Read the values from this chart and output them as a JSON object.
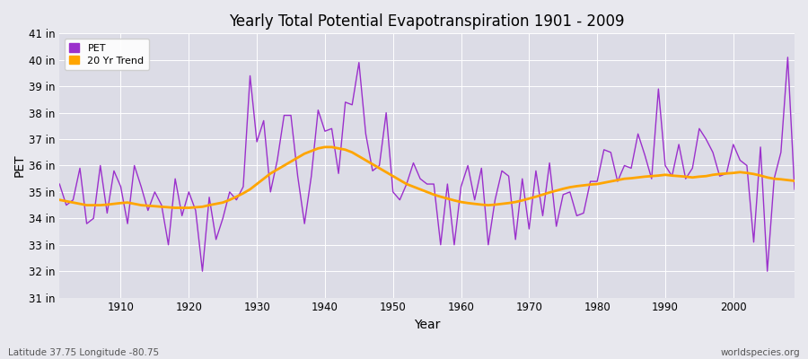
{
  "title": "Yearly Total Potential Evapotranspiration 1901 - 2009",
  "ylabel": "PET",
  "xlabel": "Year",
  "bottom_left_label": "Latitude 37.75 Longitude -80.75",
  "bottom_right_label": "worldspecies.org",
  "ylim": [
    31,
    41
  ],
  "xlim": [
    1901,
    2009
  ],
  "yticks": [
    31,
    32,
    33,
    34,
    35,
    36,
    37,
    38,
    39,
    40,
    41
  ],
  "xticks": [
    1910,
    1920,
    1930,
    1940,
    1950,
    1960,
    1970,
    1980,
    1990,
    2000
  ],
  "pet_color": "#9B30CC",
  "trend_color": "#FFA500",
  "bg_color": "#E8E8EE",
  "plot_bg_color": "#DCDCE6",
  "grid_color": "#FFFFFF",
  "legend_labels": [
    "PET",
    "20 Yr Trend"
  ],
  "pet_data": [
    35.3,
    34.5,
    34.7,
    35.9,
    33.8,
    34.0,
    36.0,
    34.2,
    35.8,
    35.2,
    33.8,
    36.0,
    35.2,
    34.3,
    35.0,
    34.5,
    33.0,
    35.5,
    34.1,
    35.0,
    34.3,
    32.0,
    34.8,
    33.2,
    34.0,
    35.0,
    34.7,
    35.2,
    39.4,
    36.9,
    37.7,
    35.0,
    36.2,
    37.9,
    37.9,
    35.6,
    33.8,
    35.6,
    38.1,
    37.3,
    37.4,
    35.7,
    38.4,
    38.3,
    39.9,
    37.2,
    35.8,
    36.0,
    38.0,
    35.0,
    34.7,
    35.3,
    36.1,
    35.5,
    35.3,
    35.3,
    33.0,
    35.3,
    33.0,
    35.2,
    36.0,
    34.7,
    35.9,
    33.0,
    34.7,
    35.8,
    35.6,
    33.2,
    35.5,
    33.6,
    35.8,
    34.1,
    36.1,
    33.7,
    34.9,
    35.0,
    34.1,
    34.2,
    35.4,
    35.4,
    36.6,
    36.5,
    35.4,
    36.0,
    35.9,
    37.2,
    36.4,
    35.5,
    38.9,
    36.0,
    35.6,
    36.8,
    35.5,
    35.9,
    37.4,
    37.0,
    36.5,
    35.6,
    35.7,
    36.8,
    36.2,
    36.0,
    33.1,
    36.7,
    32.0,
    35.5,
    36.5,
    40.1,
    35.1
  ],
  "years": [
    1901,
    1902,
    1903,
    1904,
    1905,
    1906,
    1907,
    1908,
    1909,
    1910,
    1911,
    1912,
    1913,
    1914,
    1915,
    1916,
    1917,
    1918,
    1919,
    1920,
    1921,
    1922,
    1923,
    1924,
    1925,
    1926,
    1927,
    1928,
    1929,
    1930,
    1931,
    1932,
    1933,
    1934,
    1935,
    1936,
    1937,
    1938,
    1939,
    1940,
    1941,
    1942,
    1943,
    1944,
    1945,
    1946,
    1947,
    1948,
    1949,
    1950,
    1951,
    1952,
    1953,
    1954,
    1955,
    1956,
    1957,
    1958,
    1959,
    1960,
    1961,
    1962,
    1963,
    1964,
    1965,
    1966,
    1967,
    1968,
    1969,
    1970,
    1971,
    1972,
    1973,
    1974,
    1975,
    1976,
    1977,
    1978,
    1979,
    1980,
    1981,
    1982,
    1983,
    1984,
    1985,
    1986,
    1987,
    1988,
    1989,
    1990,
    1991,
    1992,
    1993,
    1994,
    1995,
    1996,
    1997,
    1998,
    1999,
    2000,
    2001,
    2002,
    2003,
    2004,
    2005,
    2006,
    2007,
    2008,
    2009
  ],
  "trend_data": [
    34.7,
    34.65,
    34.6,
    34.55,
    34.5,
    34.5,
    34.5,
    34.52,
    34.55,
    34.58,
    34.6,
    34.55,
    34.5,
    34.48,
    34.46,
    34.44,
    34.42,
    34.4,
    34.4,
    34.4,
    34.42,
    34.44,
    34.5,
    34.55,
    34.6,
    34.7,
    34.82,
    34.95,
    35.1,
    35.3,
    35.5,
    35.7,
    35.85,
    36.0,
    36.15,
    36.3,
    36.45,
    36.55,
    36.65,
    36.7,
    36.7,
    36.65,
    36.6,
    36.5,
    36.35,
    36.2,
    36.05,
    35.9,
    35.75,
    35.6,
    35.45,
    35.3,
    35.2,
    35.1,
    35.0,
    34.9,
    34.82,
    34.75,
    34.68,
    34.62,
    34.58,
    34.55,
    34.52,
    34.5,
    34.52,
    34.55,
    34.58,
    34.62,
    34.68,
    34.75,
    34.82,
    34.9,
    34.98,
    35.05,
    35.12,
    35.18,
    35.22,
    35.25,
    35.28,
    35.3,
    35.35,
    35.4,
    35.45,
    35.5,
    35.52,
    35.55,
    35.58,
    35.6,
    35.62,
    35.65,
    35.62,
    35.6,
    35.58,
    35.55,
    35.58,
    35.6,
    35.65,
    35.68,
    35.7,
    35.72,
    35.75,
    35.72,
    35.68,
    35.62,
    35.55,
    35.5,
    35.48,
    35.45,
    35.42
  ]
}
